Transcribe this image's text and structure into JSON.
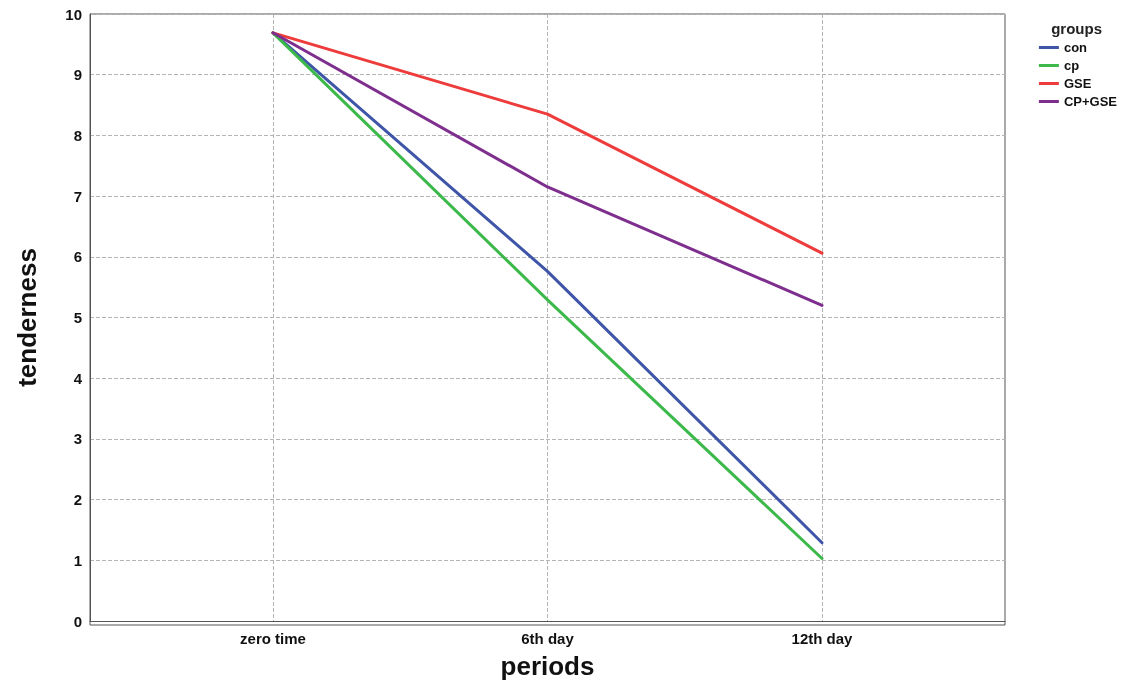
{
  "chart_data": {
    "type": "line",
    "xlabel": "periods",
    "ylabel": "tenderness",
    "legend_title": "groups",
    "categories": [
      "zero time",
      "6th day",
      "12th day"
    ],
    "series": [
      {
        "name": "con",
        "color": "#3f56a8",
        "values": [
          9.69,
          5.76,
          1.29
        ]
      },
      {
        "name": "cp",
        "color": "#3cb94a",
        "values": [
          9.69,
          5.29,
          1.03
        ]
      },
      {
        "name": "GSE",
        "color": "#ee3b3b",
        "values": [
          9.69,
          8.35,
          6.06
        ]
      },
      {
        "name": "CP+GSE",
        "color": "#7e2f8e",
        "values": [
          9.69,
          7.15,
          5.2
        ]
      }
    ],
    "ylim": [
      0,
      10
    ],
    "yticks": [
      0,
      1,
      2,
      3,
      4,
      5,
      6,
      7,
      8,
      9,
      10
    ],
    "grid": true,
    "legend": "top right",
    "marker": "none",
    "line_style": "solid"
  }
}
